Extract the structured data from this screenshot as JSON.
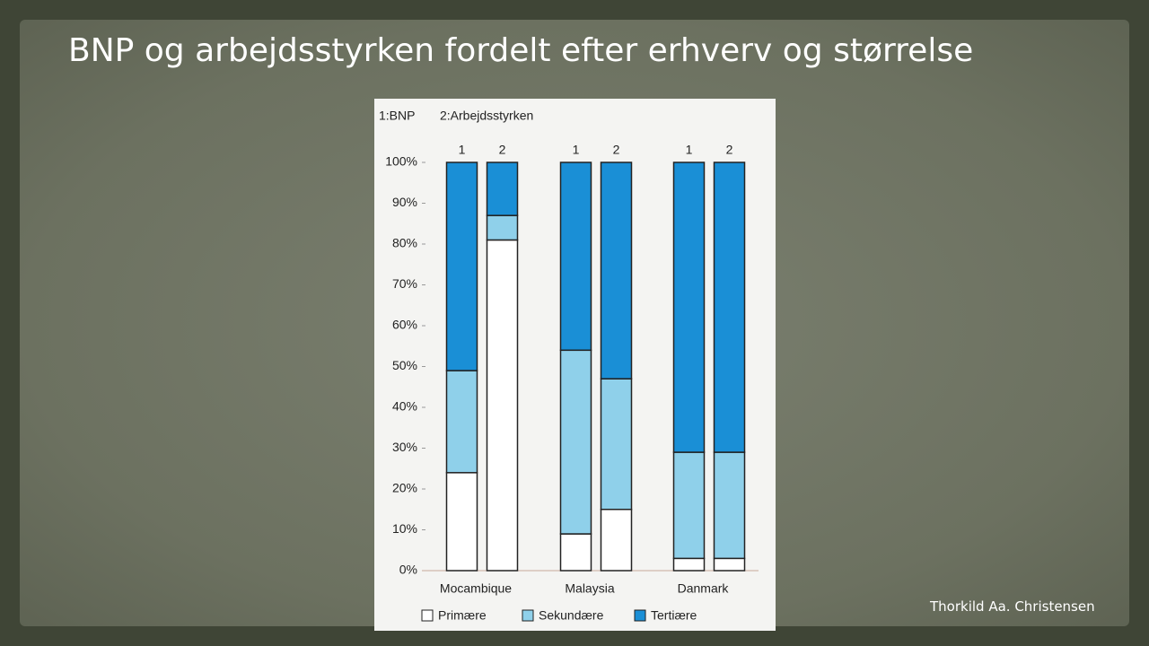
{
  "title": "BNP og arbejdsstyrken fordelt efter erhverv og størrelse",
  "author": "Thorkild Aa. Christensen",
  "chart_data": {
    "type": "stacked-bar",
    "notes": [
      "1:BNP",
      "2:Arbejdsstyrken"
    ],
    "groups": [
      "Mocambique",
      "Malaysia",
      "Danmark"
    ],
    "categories": [
      "1",
      "2",
      "1",
      "2",
      "1",
      "2"
    ],
    "series": [
      {
        "name": "Primære",
        "color": "#ffffff",
        "values": [
          24,
          81,
          9,
          15,
          3,
          3
        ]
      },
      {
        "name": "Sekundære",
        "color": "#8fd0ea",
        "values": [
          25,
          6,
          45,
          32,
          26,
          26
        ]
      },
      {
        "name": "Tertiære",
        "color": "#1a8fd6",
        "values": [
          51,
          13,
          46,
          53,
          71,
          71
        ]
      }
    ],
    "ylim": [
      0,
      100
    ],
    "yticks": [
      {
        "value": 0,
        "label": "0%"
      },
      {
        "value": 10,
        "label": "10%"
      },
      {
        "value": 20,
        "label": "20%"
      },
      {
        "value": 30,
        "label": "30%"
      },
      {
        "value": 40,
        "label": "40%"
      },
      {
        "value": 50,
        "label": "50%"
      },
      {
        "value": 60,
        "label": "60%"
      },
      {
        "value": 70,
        "label": "70%"
      },
      {
        "value": 80,
        "label": "80%"
      },
      {
        "value": 90,
        "label": "90%"
      },
      {
        "value": 100,
        "label": "100%"
      }
    ],
    "legend": "bottom"
  }
}
